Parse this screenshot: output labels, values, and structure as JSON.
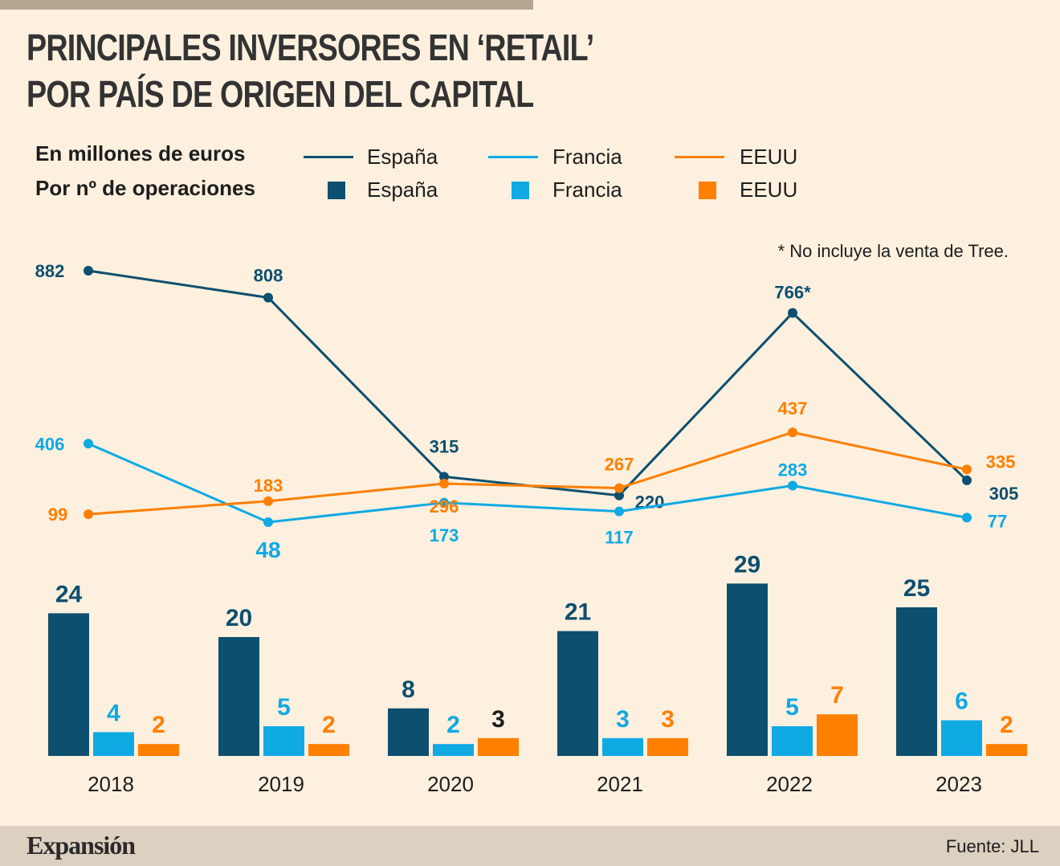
{
  "title": [
    "PRINCIPALES INVERSORES EN ‘RETAIL’",
    "POR PAÍS DE ORIGEN DEL CAPITAL"
  ],
  "legend": {
    "lines_label": "En millones de euros",
    "bars_label": "Por nº de operaciones",
    "items": [
      {
        "name": "España",
        "color": "#0d4f6f"
      },
      {
        "name": "Francia",
        "color": "#0fa9e4"
      },
      {
        "name": "EEUU",
        "color": "#ff7f00"
      }
    ]
  },
  "note": "* No incluye la venta de Tree.",
  "footer": {
    "brand": "Expansión",
    "source": "Fuente: JLL"
  },
  "chart_data": [
    {
      "type": "line",
      "ylabel": "En millones de euros",
      "categories": [
        "2018",
        "2019",
        "2020",
        "2021",
        "2022",
        "2023"
      ],
      "series": [
        {
          "name": "España",
          "color": "#0d4f6f",
          "values": [
            882,
            808,
            315,
            220,
            766,
            305
          ],
          "labels": [
            "882",
            "808",
            "315",
            "220",
            "766*",
            "305"
          ]
        },
        {
          "name": "Francia",
          "color": "#0fa9e4",
          "values": [
            406,
            48,
            173,
            117,
            283,
            77
          ],
          "labels": [
            "406",
            "48",
            "173",
            "117",
            "283",
            "77"
          ]
        },
        {
          "name": "EEUU",
          "color": "#ff7f00",
          "values": [
            99,
            183,
            296,
            267,
            437,
            335
          ],
          "labels": [
            "99",
            "183",
            "296",
            "267",
            "437",
            "335"
          ]
        }
      ]
    },
    {
      "type": "bar",
      "ylabel": "Por nº de operaciones",
      "categories": [
        "2018",
        "2019",
        "2020",
        "2021",
        "2022",
        "2023"
      ],
      "series": [
        {
          "name": "España",
          "color": "#0d4f6f",
          "values": [
            24,
            20,
            8,
            21,
            29,
            25
          ]
        },
        {
          "name": "Francia",
          "color": "#0fa9e4",
          "values": [
            4,
            5,
            2,
            3,
            5,
            6
          ]
        },
        {
          "name": "EEUU",
          "color": "#ff7f00",
          "values": [
            2,
            2,
            3,
            3,
            7,
            2
          ]
        }
      ]
    }
  ]
}
